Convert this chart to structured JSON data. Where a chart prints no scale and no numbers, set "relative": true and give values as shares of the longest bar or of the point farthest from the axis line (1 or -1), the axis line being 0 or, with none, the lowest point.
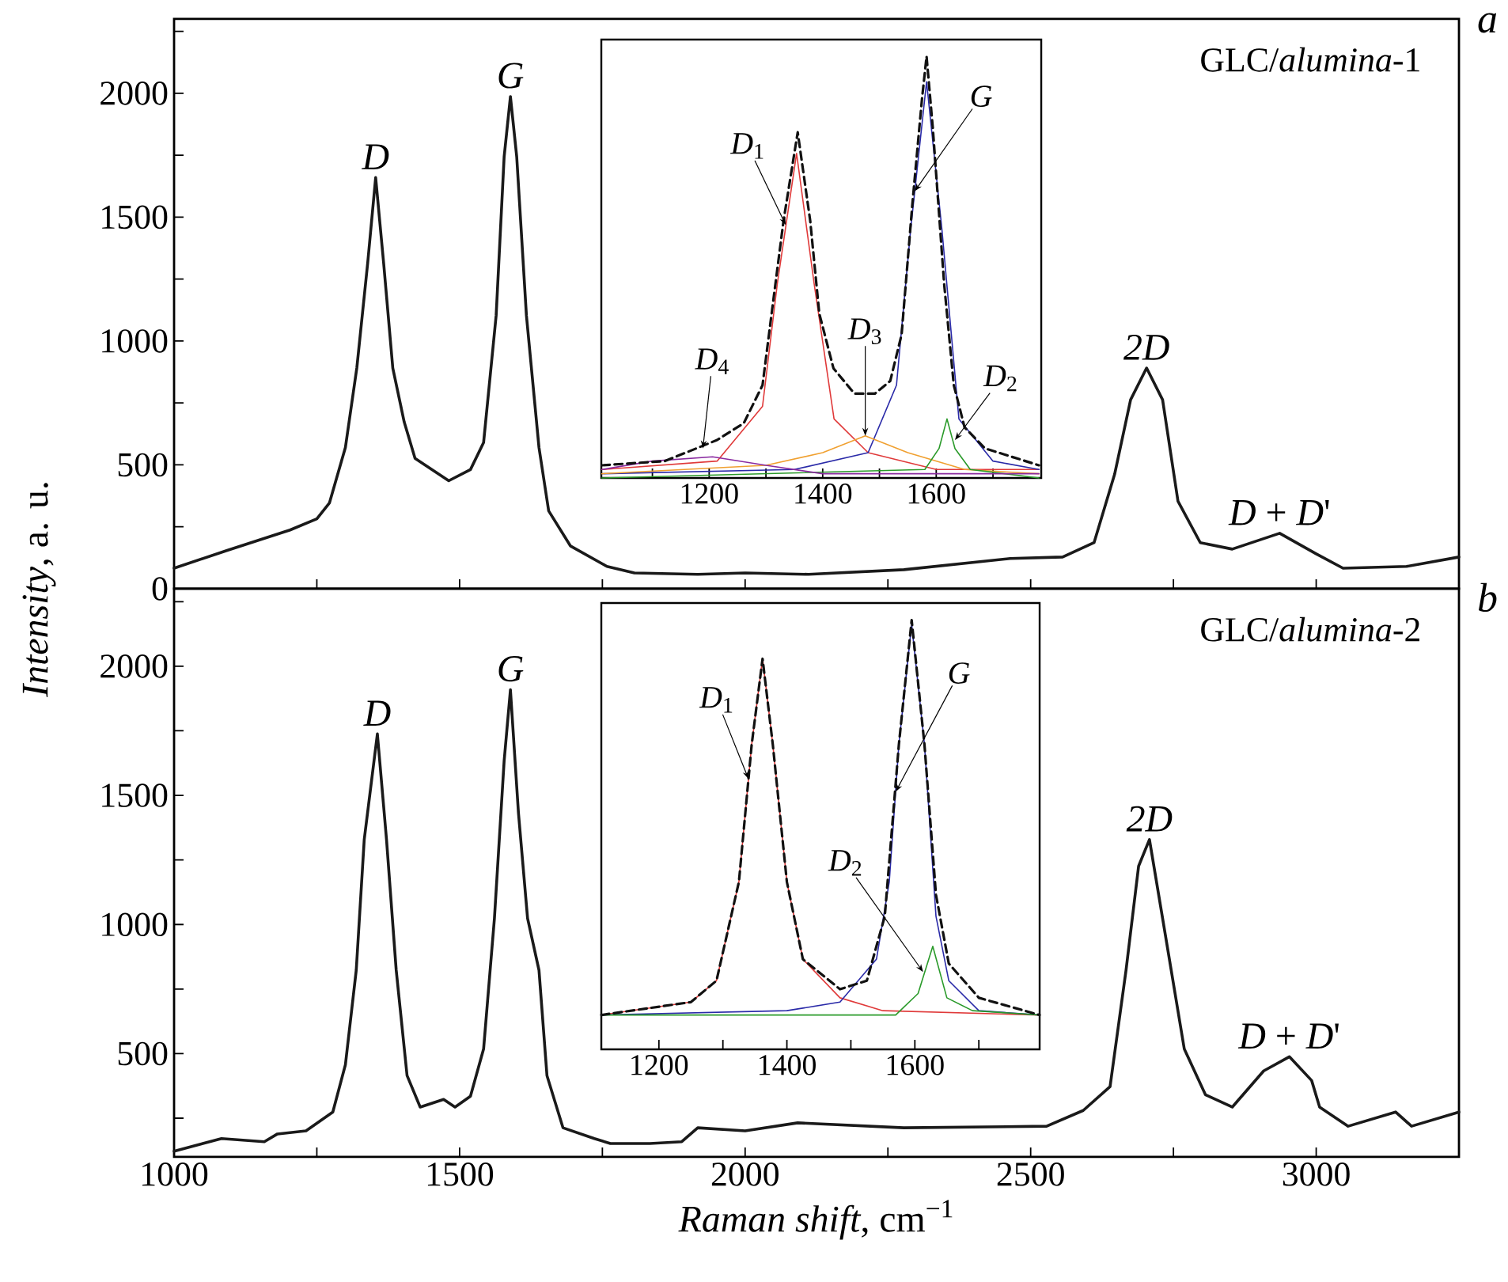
{
  "chart_data": [
    {
      "type": "line",
      "ylabel": "*Intensity*, a. u.",
      "xlim": [
        1000,
        3250
      ],
      "ylim": [
        0,
        2300
      ],
      "tick_labels": "y",
      "xticks": [
        1250,
        1500,
        1750,
        2000,
        2250,
        2500,
        2750,
        3000
      ],
      "yticks": [
        0,
        {
          "value": 250,
          "label": null
        },
        500,
        {
          "value": 750,
          "label": null
        },
        1000,
        {
          "value": 1250,
          "label": null
        },
        1500,
        {
          "value": 1750,
          "label": null
        },
        2000,
        {
          "value": 2250,
          "label": null
        }
      ],
      "series": [
        {
          "color": "#1a1a1a",
          "x": [
            1000,
            1092,
            1203,
            1250,
            1272,
            1300,
            1320,
            1339,
            1353,
            1367,
            1383,
            1403,
            1422,
            1481,
            1519,
            1542,
            1564,
            1578,
            1589,
            1600,
            1617,
            1639,
            1656,
            1694,
            1758,
            1806,
            1917,
            2000,
            2111,
            2278,
            2464,
            2556,
            2611,
            2647,
            2675,
            2703,
            2731,
            2758,
            2797,
            2853,
            2936,
            3000,
            3047,
            3158,
            3250
          ],
          "values": [
            83,
            154,
            237,
            282,
            346,
            570,
            891,
            1314,
            1660,
            1314,
            891,
            673,
            526,
            436,
            481,
            590,
            1103,
            1744,
            1987,
            1744,
            1103,
            570,
            314,
            173,
            90,
            64,
            58,
            64,
            58,
            77,
            122,
            128,
            186,
            462,
            763,
            891,
            763,
            353,
            186,
            160,
            224,
            141,
            83,
            90,
            128
          ]
        }
      ],
      "annotations": [
        "GLC/*alumina*-1",
        "a",
        {
          "text": "D",
          "x": 1353,
          "y": 1660
        },
        {
          "text": "G",
          "x": 1589,
          "y": 1987
        },
        {
          "text": "2D",
          "x": 2703,
          "y": 891
        },
        {
          "text": "*D* + *D*'",
          "x": 2936,
          "y": 224
        }
      ]
    },
    {
      "type": "line",
      "relative": true,
      "xlim": [
        1010,
        1785
      ],
      "tick_labels": "x",
      "xticks": [
        {
          "value": 1100,
          "label": null
        },
        1200,
        {
          "value": 1300,
          "label": null
        },
        1400,
        {
          "value": 1500,
          "label": null
        },
        1600,
        {
          "value": 1700,
          "label": null
        }
      ],
      "series": [
        {
          "color": "#e03a3a",
          "x": [
            1011,
            1214,
            1294,
            1320,
            1354,
            1385,
            1420,
            1480,
            1600,
            1781
          ],
          "values": [
            0.02,
            0.04,
            0.17,
            0.46,
            0.77,
            0.46,
            0.14,
            0.06,
            0.02,
            0.02
          ]
        },
        {
          "color": "#2a2aa8",
          "x": [
            1011,
            1350,
            1480,
            1530,
            1555,
            1583,
            1610,
            1640,
            1700,
            1781
          ],
          "values": [
            0.01,
            0.02,
            0.06,
            0.22,
            0.59,
            0.94,
            0.59,
            0.14,
            0.04,
            0.02
          ]
        },
        {
          "color": "#f0a030",
          "x": [
            1011,
            1300,
            1400,
            1475,
            1550,
            1650,
            1781
          ],
          "values": [
            0.01,
            0.03,
            0.06,
            0.1,
            0.06,
            0.02,
            0.01
          ]
        },
        {
          "color": "#2a9a2a",
          "x": [
            1011,
            1580,
            1605,
            1619,
            1633,
            1660,
            1781
          ],
          "values": [
            0.0,
            0.02,
            0.07,
            0.14,
            0.07,
            0.02,
            0.0
          ]
        },
        {
          "color": "#8a2aa0",
          "x": [
            1011,
            1100,
            1206,
            1300,
            1400,
            1781
          ],
          "values": [
            0.02,
            0.04,
            0.05,
            0.03,
            0.01,
            0.01
          ]
        },
        {
          "color": "#111111",
          "line_style": "dashed",
          "x": [
            1011,
            1122,
            1214,
            1261,
            1294,
            1311,
            1331,
            1356,
            1378,
            1394,
            1419,
            1456,
            1492,
            1519,
            1539,
            1558,
            1575,
            1583,
            1594,
            1614,
            1631,
            1650,
            1686,
            1781
          ],
          "values": [
            0.03,
            0.04,
            0.09,
            0.13,
            0.22,
            0.4,
            0.61,
            0.82,
            0.61,
            0.39,
            0.26,
            0.2,
            0.2,
            0.23,
            0.34,
            0.65,
            0.9,
            1.0,
            0.83,
            0.46,
            0.22,
            0.12,
            0.07,
            0.03
          ]
        }
      ],
      "annotations": [
        {
          "text": "*D*$_{1}$",
          "x": 1335,
          "y": 0.6
        },
        {
          "text": "G",
          "x": 1562,
          "y": 0.68
        },
        {
          "text": "*D*$_{3}$",
          "x": 1475,
          "y": 0.1
        },
        {
          "text": "*D*$_{2}$",
          "x": 1633,
          "y": 0.09
        },
        {
          "text": "*D*$_{4}$",
          "x": 1189,
          "y": 0.07
        }
      ]
    },
    {
      "type": "line",
      "xlabel": "*Raman shift*, cm$^{−1}$",
      "xlim": [
        1000,
        3250
      ],
      "ylim": [
        100,
        2300
      ],
      "xticks": [
        1000,
        {
          "value": 1250,
          "label": null
        },
        1500,
        {
          "value": 1750,
          "label": null
        },
        2000,
        {
          "value": 2250,
          "label": null
        },
        2500,
        {
          "value": 2750,
          "label": null
        },
        3000
      ],
      "yticks": [
        {
          "value": 250,
          "label": null
        },
        500,
        {
          "value": 750,
          "label": null
        },
        1000,
        {
          "value": 1250,
          "label": null
        },
        1500,
        {
          "value": 1750,
          "label": null
        },
        2000,
        {
          "value": 2250,
          "label": null
        }
      ],
      "series": [
        {
          "color": "#1a1a1a",
          "x": [
            1000,
            1083,
            1158,
            1181,
            1231,
            1278,
            1300,
            1319,
            1333,
            1356,
            1372,
            1389,
            1408,
            1431,
            1472,
            1492,
            1519,
            1542,
            1561,
            1578,
            1589,
            1603,
            1619,
            1639,
            1653,
            1681,
            1736,
            1764,
            1833,
            1889,
            1917,
            2000,
            2092,
            2278,
            2528,
            2592,
            2639,
            2667,
            2689,
            2708,
            2731,
            2769,
            2806,
            2853,
            2908,
            2953,
            2992,
            3006,
            3056,
            3139,
            3167,
            3250
          ],
          "values": [
            122,
            171,
            159,
            189,
            201,
            274,
            457,
            823,
            1329,
            1738,
            1329,
            823,
            415,
            293,
            323,
            293,
            335,
            518,
            1024,
            1634,
            1909,
            1433,
            1024,
            823,
            415,
            213,
            171,
            152,
            152,
            159,
            213,
            201,
            232,
            213,
            219,
            280,
            372,
            823,
            1226,
            1329,
            1024,
            518,
            341,
            293,
            433,
            488,
            396,
            293,
            219,
            274,
            219,
            274
          ]
        }
      ],
      "annotations": [
        "GLC/*alumina*-2",
        "b",
        {
          "text": "D",
          "x": 1356,
          "y": 1738
        },
        {
          "text": "G",
          "x": 1589,
          "y": 1909
        },
        {
          "text": "2D",
          "x": 2708,
          "y": 1329
        },
        {
          "text": "*D* + *D*'",
          "x": 2953,
          "y": 488
        }
      ]
    },
    {
      "type": "line",
      "relative": true,
      "xlim": [
        1110,
        1795
      ],
      "tick_labels": "x",
      "xticks": [
        1200,
        {
          "value": 1300,
          "label": null
        },
        1400,
        {
          "value": 1500,
          "label": null
        },
        1600,
        {
          "value": 1700,
          "label": null
        }
      ],
      "series": [
        {
          "color": "#e03a3a",
          "x": [
            1110,
            1250,
            1290,
            1325,
            1345,
            1362,
            1378,
            1400,
            1425,
            1483,
            1550,
            1795
          ],
          "values": [
            0.08,
            0.11,
            0.16,
            0.39,
            0.71,
            0.91,
            0.71,
            0.39,
            0.21,
            0.12,
            0.09,
            0.08
          ]
        },
        {
          "color": "#2a2aa8",
          "x": [
            1110,
            1400,
            1483,
            1540,
            1560,
            1575,
            1595,
            1615,
            1633,
            1653,
            1700,
            1795
          ],
          "values": [
            0.08,
            0.09,
            0.11,
            0.21,
            0.39,
            0.71,
            0.99,
            0.71,
            0.31,
            0.16,
            0.09,
            0.08
          ]
        },
        {
          "color": "#2a9a2a",
          "x": [
            1110,
            1570,
            1605,
            1628,
            1650,
            1690,
            1795
          ],
          "values": [
            0.08,
            0.08,
            0.13,
            0.24,
            0.12,
            0.09,
            0.08
          ]
        },
        {
          "color": "#111111",
          "line_style": "dashed",
          "x": [
            1110,
            1250,
            1290,
            1325,
            1345,
            1362,
            1378,
            1400,
            1425,
            1483,
            1525,
            1553,
            1575,
            1595,
            1615,
            1633,
            1653,
            1700,
            1795
          ],
          "values": [
            0.08,
            0.11,
            0.16,
            0.39,
            0.71,
            0.91,
            0.71,
            0.39,
            0.21,
            0.14,
            0.16,
            0.31,
            0.71,
            1.0,
            0.71,
            0.36,
            0.2,
            0.12,
            0.08
          ]
        }
      ],
      "annotations": [
        {
          "text": "*D*$_{1}$",
          "x": 1340,
          "y": 0.63
        },
        {
          "text": "G",
          "x": 1570,
          "y": 0.6
        },
        {
          "text": "*D*$_{2}$",
          "x": 1613,
          "y": 0.18
        }
      ]
    }
  ]
}
